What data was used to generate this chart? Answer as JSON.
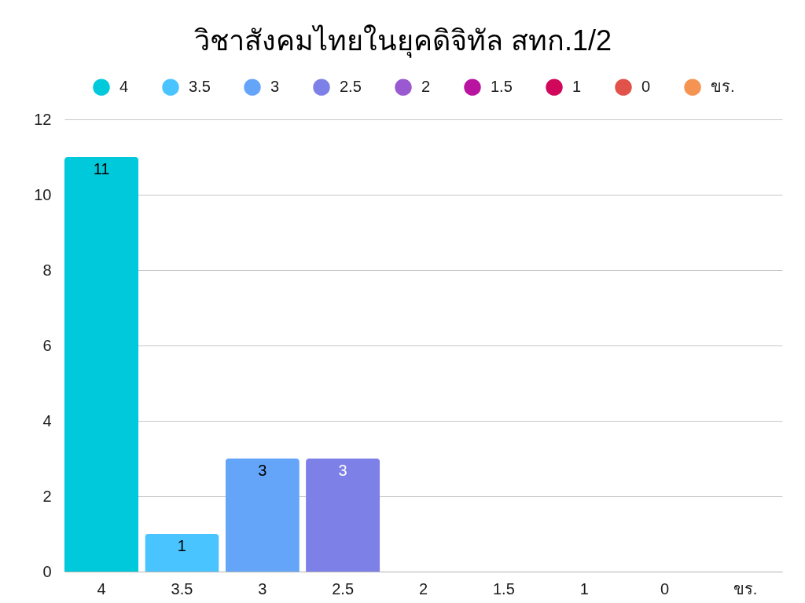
{
  "chart_data": {
    "type": "bar",
    "title": "วิชาสังคมไทยในยุคดิจิทัล สทก.1/2",
    "categories": [
      "4",
      "3.5",
      "3",
      "2.5",
      "2",
      "1.5",
      "1",
      "0",
      "ขร."
    ],
    "stacked": true,
    "series": [
      {
        "name": "4",
        "color": "#00c9db",
        "values": [
          11,
          null,
          null,
          null,
          null,
          null,
          null,
          null,
          null
        ],
        "value_labels": [
          "11",
          null,
          null,
          null,
          null,
          null,
          null,
          null,
          null
        ]
      },
      {
        "name": "3.5",
        "color": "#49c4ff",
        "values": [
          null,
          1,
          null,
          null,
          null,
          null,
          null,
          null,
          null
        ],
        "value_labels": [
          null,
          "1",
          null,
          null,
          null,
          null,
          null,
          null,
          null
        ]
      },
      {
        "name": "3",
        "color": "#64a5f9",
        "values": [
          null,
          null,
          3,
          null,
          null,
          null,
          null,
          null,
          null
        ],
        "value_labels": [
          null,
          null,
          "3",
          null,
          null,
          null,
          null,
          null,
          null
        ]
      },
      {
        "name": "2.5",
        "color": "#7d80e6",
        "values": [
          null,
          null,
          null,
          3,
          null,
          null,
          null,
          null,
          null
        ],
        "value_labels": [
          null,
          null,
          null,
          "3",
          null,
          null,
          null,
          null,
          null
        ]
      },
      {
        "name": "2",
        "color": "#9a59d1",
        "values": [
          null,
          null,
          null,
          null,
          0,
          null,
          null,
          null,
          null
        ]
      },
      {
        "name": "1.5",
        "color": "#b8149f",
        "values": [
          null,
          null,
          null,
          null,
          null,
          0,
          null,
          null,
          null
        ]
      },
      {
        "name": "1",
        "color": "#d1075c",
        "values": [
          null,
          null,
          null,
          null,
          null,
          null,
          0,
          null,
          null
        ]
      },
      {
        "name": "0",
        "color": "#e0524a",
        "values": [
          null,
          null,
          null,
          null,
          null,
          null,
          null,
          0,
          null
        ]
      },
      {
        "name": "ขร.",
        "color": "#f59352",
        "values": [
          null,
          null,
          null,
          null,
          null,
          null,
          null,
          null,
          0
        ]
      }
    ],
    "ylim": [
      0,
      12
    ],
    "yticks": [
      0,
      2,
      4,
      6,
      8,
      10,
      12
    ],
    "grid": "y",
    "legend": "top"
  }
}
